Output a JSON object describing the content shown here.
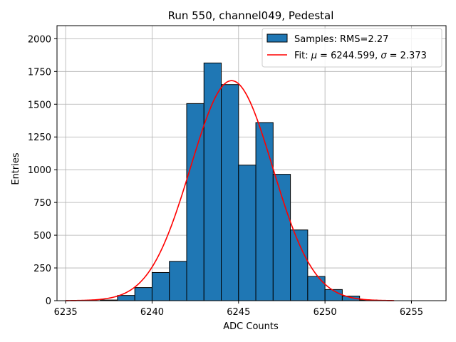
{
  "chart_data": {
    "type": "bar",
    "title": "Run 550, channel049, Pedestal",
    "xlabel": "ADC Counts",
    "ylabel": "Entries",
    "xlim": [
      6234.5,
      6257.0
    ],
    "ylim": [
      0,
      2100
    ],
    "xticks": [
      6235,
      6240,
      6245,
      6250,
      6255
    ],
    "yticks": [
      0,
      250,
      500,
      750,
      1000,
      1250,
      1500,
      1750,
      2000
    ],
    "grid": true,
    "legend_position": "top-right",
    "bar_color": "#1f77b4",
    "fit_color": "#ff0000",
    "histogram": {
      "name": "Samples: RMS=2.27",
      "bin_width": 1,
      "bins": [
        {
          "left": 6237,
          "count": 5
        },
        {
          "left": 6238,
          "count": 40
        },
        {
          "left": 6239,
          "count": 100
        },
        {
          "left": 6240,
          "count": 215
        },
        {
          "left": 6241,
          "count": 300
        },
        {
          "left": 6242,
          "count": 1505
        },
        {
          "left": 6243,
          "count": 1815
        },
        {
          "left": 6244,
          "count": 1650
        },
        {
          "left": 6245,
          "count": 1035
        },
        {
          "left": 6246,
          "count": 1360
        },
        {
          "left": 6247,
          "count": 965
        },
        {
          "left": 6248,
          "count": 540
        },
        {
          "left": 6249,
          "count": 185
        },
        {
          "left": 6250,
          "count": 85
        },
        {
          "left": 6251,
          "count": 35
        },
        {
          "left": 6252,
          "count": 5
        }
      ]
    },
    "fit": {
      "name_prefix": "Fit: ",
      "mu_symbol": "μ",
      "mu_value": "= 6244.599, ",
      "sigma_symbol": "σ",
      "sigma_value": "= 2.373",
      "mu": 6244.599,
      "sigma": 2.373,
      "amplitude": 1680,
      "x_range": [
        6235,
        6254
      ]
    }
  }
}
